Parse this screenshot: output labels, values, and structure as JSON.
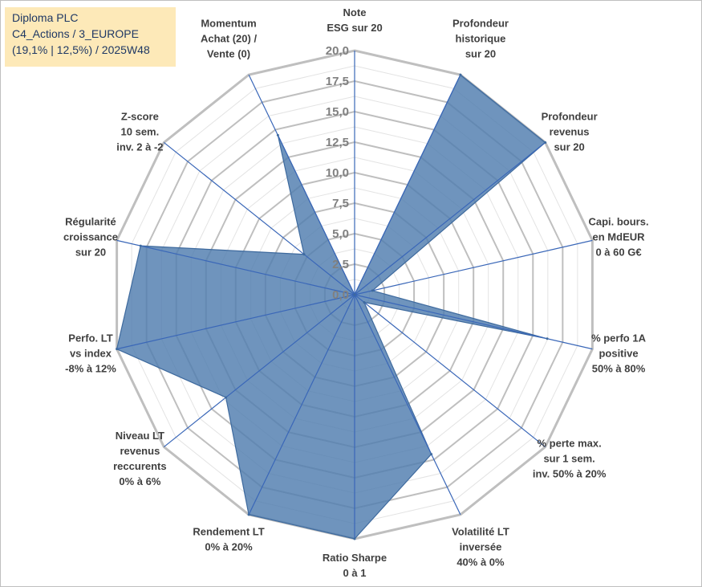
{
  "title": {
    "line1": "Diploma PLC",
    "line2": "C4_Actions / 3_EUROPE",
    "line3": "(19,1% | 12,5%) / 2025W48"
  },
  "chart_data": {
    "type": "radar",
    "rmin": 0,
    "rmax": 20,
    "ticks": [
      "0,0",
      "2,5",
      "5,0",
      "7,5",
      "10,0",
      "12,5",
      "15,0",
      "17,5",
      "20,0"
    ],
    "axes": [
      {
        "lines": [
          "Note",
          "ESG sur 20"
        ],
        "value": 0
      },
      {
        "lines": [
          "Profondeur",
          "historique",
          "sur 20"
        ],
        "value": 20
      },
      {
        "lines": [
          "Profondeur",
          "revenus",
          "sur 20"
        ],
        "value": 20
      },
      {
        "lines": [
          "Capi. bours.",
          "en MdEUR",
          "0 à 60 G€"
        ],
        "value": 1.5
      },
      {
        "lines": [
          "% perfo 1A",
          "positive",
          "50% à 80%"
        ],
        "value": 16.2
      },
      {
        "lines": [
          "% perte max.",
          "sur 1 sem.",
          "inv. 50% à 20%"
        ],
        "value": 1.0
      },
      {
        "lines": [
          "Volatilité LT",
          "inversée",
          "40% à 0%"
        ],
        "value": 14.5
      },
      {
        "lines": [
          "Ratio Sharpe",
          "0 à 1"
        ],
        "value": 20
      },
      {
        "lines": [
          "Rendement LT",
          "0% à 20%"
        ],
        "value": 20
      },
      {
        "lines": [
          "Niveau LT",
          "revenus",
          "reccurents",
          "0% à 6%"
        ],
        "value": 13.5
      },
      {
        "lines": [
          "Perfo. LT",
          "vs index",
          "-8% à 12%"
        ],
        "value": 20
      },
      {
        "lines": [
          "Régularité",
          "croissance",
          "sur 20"
        ],
        "value": 18
      },
      {
        "lines": [
          "Z-score",
          "10 sem.",
          "inv. 2 à -2"
        ],
        "value": 5.3
      },
      {
        "lines": [
          "Momentum",
          "Achat (20) /",
          "Vente (0)"
        ],
        "value": 14.5
      }
    ],
    "colors": {
      "fill": "#4f7cae",
      "stroke": "#3e6a9e",
      "spoke": "#3a67b8",
      "grid_major": "#bfbfbf",
      "grid_minor": "#e3e3e3"
    }
  }
}
